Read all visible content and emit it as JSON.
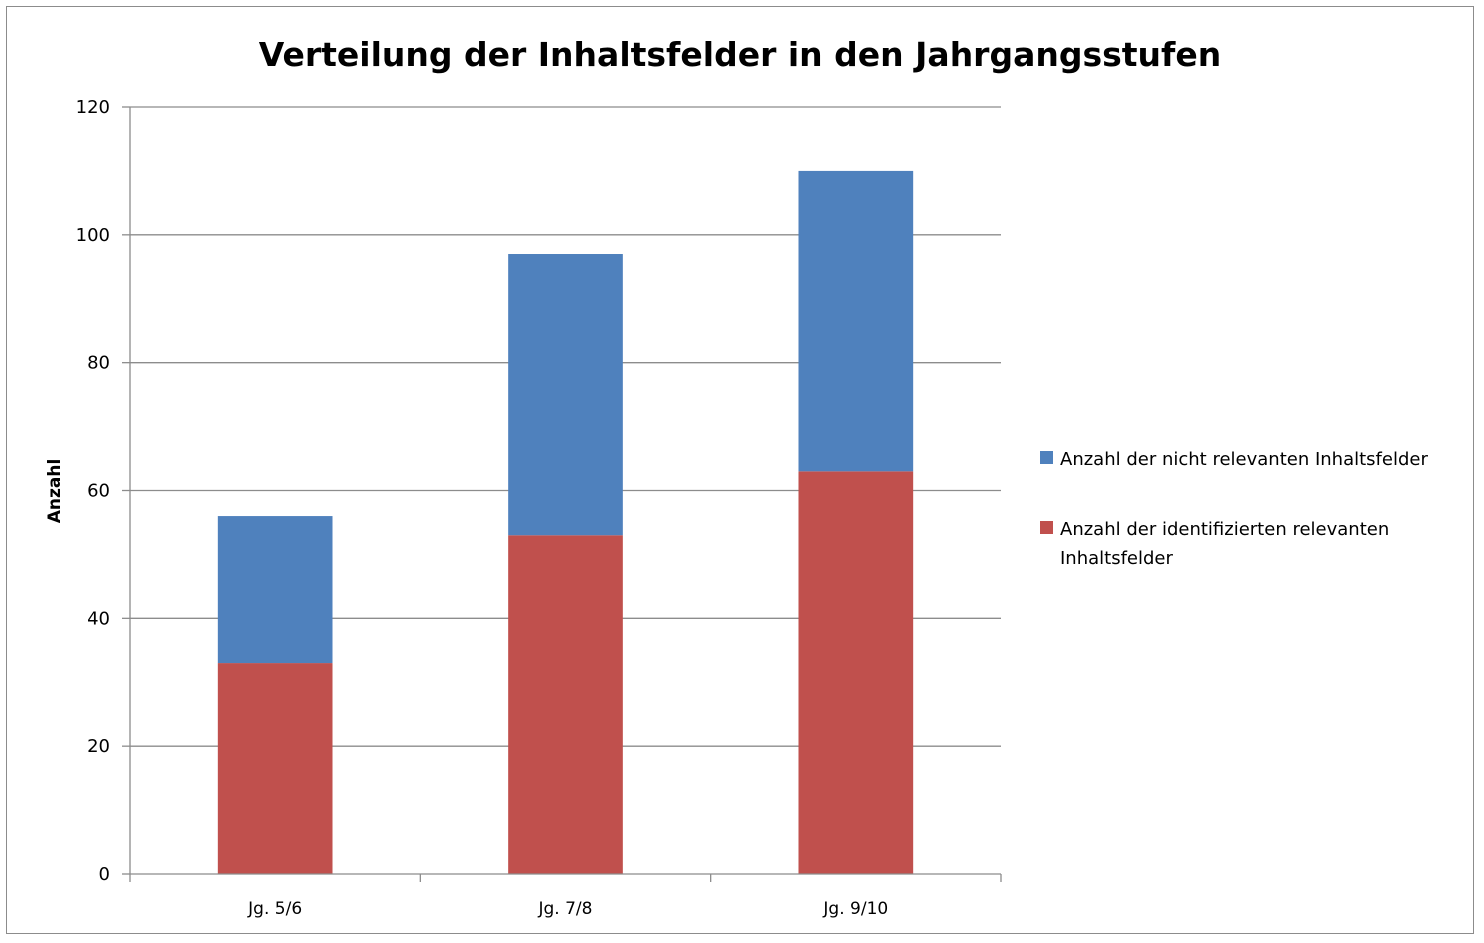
{
  "chart_data": {
    "type": "bar",
    "stacked": true,
    "title": "Verteilung der Inhaltsfelder in den Jahrgangsstufen",
    "xlabel": "",
    "ylabel": "Anzahl",
    "ylim": [
      0,
      120
    ],
    "yticks": [
      0,
      20,
      40,
      60,
      80,
      100,
      120
    ],
    "categories": [
      "Jg. 5/6",
      "Jg. 7/8",
      "Jg. 9/10"
    ],
    "series": [
      {
        "name": "Anzahl der identifizierten relevanten Inhaltsfelder",
        "values": [
          33,
          53,
          63
        ],
        "color": "#c0504d"
      },
      {
        "name": "Anzahl der nicht relevanten Inhaltsfelder",
        "values": [
          23,
          44,
          47
        ],
        "color": "#4f81bd"
      }
    ],
    "legend_order": [
      1,
      0
    ],
    "legend_position": "right",
    "grid": true,
    "gridline_color": "#8c8c8c"
  }
}
